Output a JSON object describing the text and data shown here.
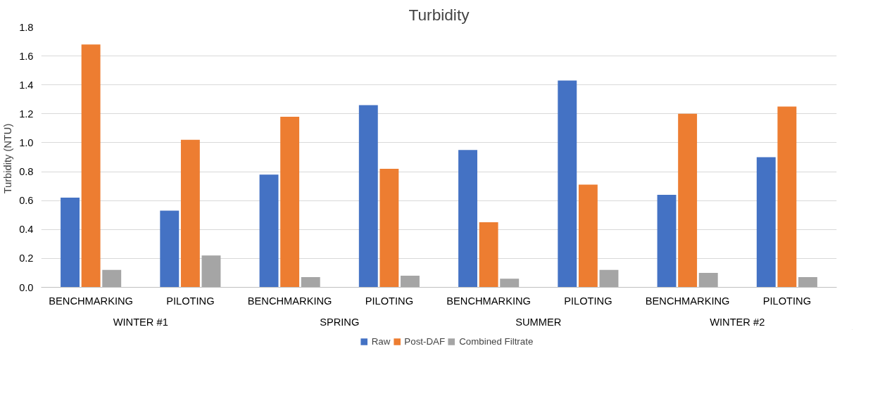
{
  "chart_data": {
    "type": "bar",
    "title": "Turbidity",
    "ylabel": "Turbidity  (NTU)",
    "categories": [
      "BENCHMARKING",
      "PILOTING",
      "BENCHMARKING",
      "PILOTING",
      "BENCHMARKING",
      "PILOTING",
      "BENCHMARKING",
      "PILOTING"
    ],
    "annotations": [
      "WINTER #1",
      "SPRING",
      "SUMMER",
      "WINTER #2"
    ],
    "series": [
      {
        "name": "Raw",
        "color": "#4472c4",
        "values": [
          0.62,
          0.53,
          0.78,
          1.26,
          0.95,
          1.43,
          0.64,
          0.9
        ]
      },
      {
        "name": "Post-DAF",
        "color": "#ed7d31",
        "values": [
          1.68,
          1.02,
          1.18,
          0.82,
          0.45,
          0.71,
          1.2,
          1.25
        ]
      },
      {
        "name": "Combined Filtrate",
        "color": "#a5a5a5",
        "values": [
          0.12,
          0.22,
          0.07,
          0.08,
          0.06,
          0.12,
          0.1,
          0.07
        ]
      }
    ],
    "ylim": [
      0,
      1.8
    ],
    "yticks": [
      {
        "value": 0,
        "label": "0.0"
      },
      0.2,
      0.4,
      0.6,
      0.8,
      {
        "value": 1,
        "label": "1.0"
      },
      1.2,
      1.4,
      1.6,
      1.8
    ],
    "grid": "y",
    "legend": "bottom"
  }
}
